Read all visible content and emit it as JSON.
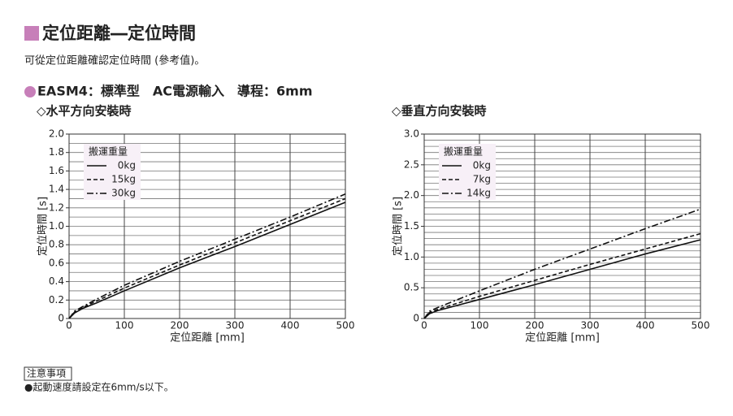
{
  "header": {
    "title": "定位距離―定位時間",
    "subtitle": "可從定位距離確認定位時間 (參考值)。",
    "section": "EASM4：標準型　AC電源輸入　導程：6mm"
  },
  "chart_data": [
    {
      "type": "line",
      "title": "◇水平方向安裝時",
      "x_label": "定位距離 [mm]",
      "y_label": "定位時間 [s]",
      "x": [
        0,
        10,
        25,
        50,
        100,
        200,
        300,
        400,
        500
      ],
      "xlim": [
        0,
        500
      ],
      "xticks": [
        0,
        100,
        200,
        300,
        400,
        500
      ],
      "ylim": [
        0,
        2
      ],
      "yticks": [
        0,
        0.2,
        0.4,
        0.6,
        0.8,
        {
          "value": 1,
          "label": "1.0"
        },
        1.2,
        1.4,
        1.6,
        1.8,
        {
          "value": 2,
          "label": "2.0"
        }
      ],
      "grid": true,
      "minor_grid": 0.1,
      "legend": "upper left",
      "legend_title": "搬運重量",
      "series": [
        {
          "name": "0kg",
          "color": "#111111",
          "dash": "solid",
          "values": [
            0,
            0.06,
            0.11,
            0.17,
            0.3,
            0.55,
            0.78,
            1.02,
            1.26
          ]
        },
        {
          "name": "15kg",
          "color": "#111111",
          "dash": "dashed",
          "values": [
            0,
            0.07,
            0.12,
            0.19,
            0.33,
            0.58,
            0.82,
            1.06,
            1.3
          ]
        },
        {
          "name": "30kg",
          "color": "#111111",
          "dash": "dashdot",
          "values": [
            0,
            0.08,
            0.13,
            0.21,
            0.36,
            0.62,
            0.86,
            1.1,
            1.35
          ]
        }
      ]
    },
    {
      "type": "line",
      "title": "◇垂直方向安裝時",
      "x_label": "定位距離 [mm]",
      "y_label": "定位時間 [s]",
      "x": [
        0,
        10,
        25,
        50,
        100,
        200,
        300,
        400,
        500
      ],
      "xlim": [
        0,
        500
      ],
      "xticks": [
        0,
        100,
        200,
        300,
        400,
        500
      ],
      "ylim": [
        0,
        3
      ],
      "yticks": [
        0,
        0.5,
        {
          "value": 1,
          "label": "1.0"
        },
        1.5,
        {
          "value": 2,
          "label": "2.0"
        },
        2.5,
        {
          "value": 3,
          "label": "3.0"
        }
      ],
      "grid": true,
      "minor_grid": 0.1,
      "legend": "upper left",
      "legend_title": "搬運重量",
      "series": [
        {
          "name": "0kg",
          "color": "#111111",
          "dash": "solid",
          "values": [
            0,
            0.08,
            0.13,
            0.19,
            0.31,
            0.55,
            0.8,
            1.05,
            1.28
          ]
        },
        {
          "name": "7kg",
          "color": "#111111",
          "dash": "dashed",
          "values": [
            0,
            0.1,
            0.15,
            0.22,
            0.36,
            0.62,
            0.88,
            1.13,
            1.38
          ]
        },
        {
          "name": "14kg",
          "color": "#111111",
          "dash": "dashdot",
          "values": [
            0,
            0.12,
            0.18,
            0.27,
            0.45,
            0.8,
            1.13,
            1.46,
            1.78
          ]
        }
      ]
    }
  ],
  "note": {
    "heading": "注意事項",
    "text": "●起動速度請設定在6mm/s以下。"
  }
}
